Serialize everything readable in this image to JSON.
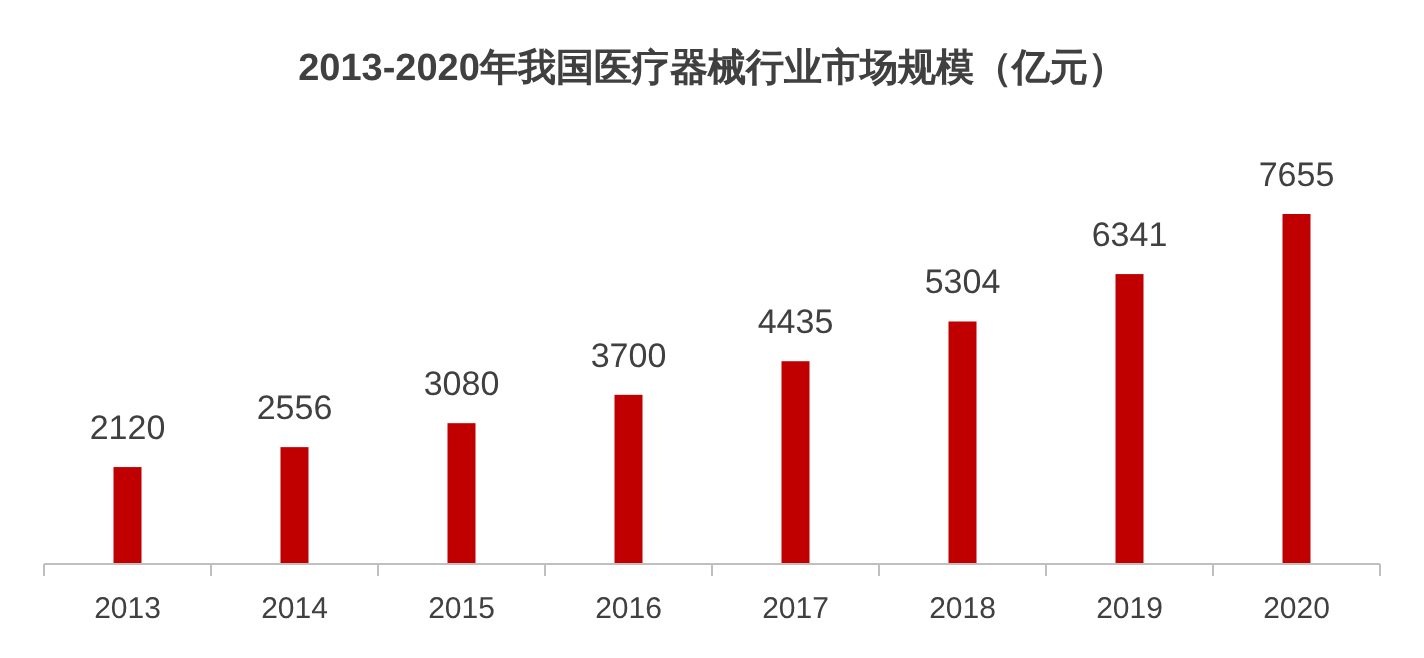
{
  "chart_data": {
    "type": "bar",
    "title": "2013-2020年我国医疗器械行业市场规模（亿元）",
    "categories": [
      "2013",
      "2014",
      "2015",
      "2016",
      "2017",
      "2018",
      "2019",
      "2020"
    ],
    "values": [
      2120,
      2556,
      3080,
      3700,
      4435,
      5304,
      6341,
      7655
    ],
    "color": "#c00000",
    "data_labels": true
  }
}
